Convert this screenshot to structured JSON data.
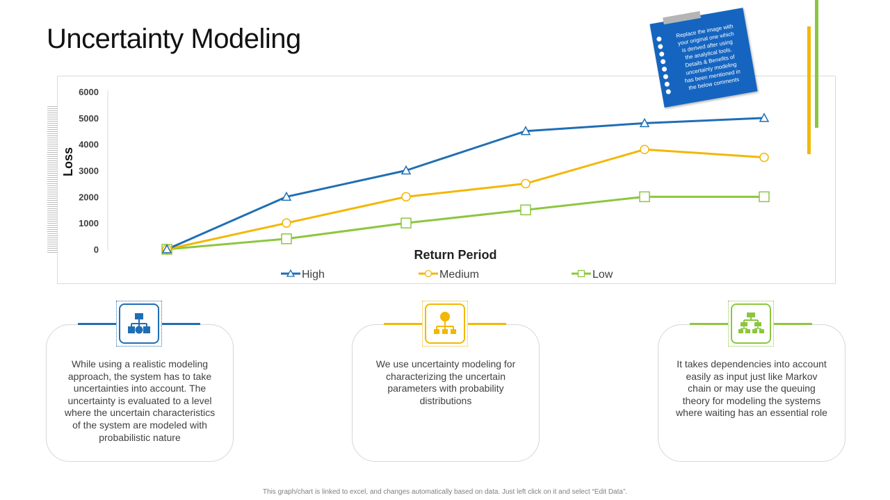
{
  "page": {
    "title": "Uncertainty Modeling",
    "footer": "This graph/chart is linked to excel, and changes automatically  based on data. Just left click on it and select “Edit Data”."
  },
  "note": {
    "lines": [
      "Replace the image with",
      "your original one which",
      "is derived after using",
      "the analytical tools.",
      "Details & Benefits of",
      "uncertainty modeling",
      "has been mentioned in",
      "the below comments"
    ]
  },
  "colors": {
    "high": "#1f6eb4",
    "medium": "#f2b705",
    "low": "#8cc63f",
    "note": "#1565c0"
  },
  "cards": [
    {
      "icon": "hierarchy-blocks-icon",
      "color": "#1f6eb4",
      "text": "While using a realistic modeling approach, the system has to take uncertainties into account. The uncertainty is evaluated to a level where the uncertain characteristics of the system are modeled with probabilistic nature"
    },
    {
      "icon": "org-chart-icon",
      "color": "#f2b705",
      "text": "We use uncertainty modeling for characterizing the uncertain parameters with probability distributions"
    },
    {
      "icon": "network-tree-icon",
      "color": "#8cc63f",
      "text": "It takes dependencies into account easily as input just like Markov chain or may use the queuing theory for modeling the systems where waiting has an essential role"
    }
  ],
  "chart_data": {
    "type": "line",
    "x": [
      1,
      2,
      3,
      4,
      5,
      6
    ],
    "xlabel": "Return Period",
    "ylabel": "Loss",
    "ylim": [
      0,
      6000
    ],
    "yticks": [
      0,
      1000,
      2000,
      3000,
      4000,
      5000,
      6000
    ],
    "grid": false,
    "legend": "bottom",
    "series": [
      {
        "name": "High",
        "values": [
          0,
          2000,
          3000,
          4500,
          4800,
          5000
        ],
        "color": "#1f6eb4",
        "marker": "triangle"
      },
      {
        "name": "Medium",
        "values": [
          0,
          1000,
          2000,
          2500,
          3800,
          3500
        ],
        "color": "#f2b705",
        "marker": "circle"
      },
      {
        "name": "Low",
        "values": [
          0,
          400,
          1000,
          1500,
          2000,
          2000
        ],
        "color": "#8cc63f",
        "marker": "square"
      }
    ]
  }
}
